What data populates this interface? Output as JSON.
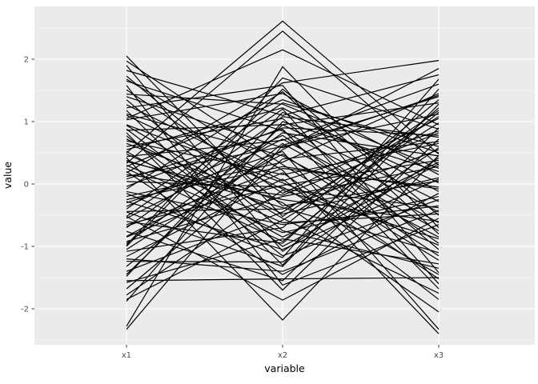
{
  "chart_data": {
    "type": "line",
    "variant": "parallel-coordinates",
    "title": "",
    "xlabel": "variable",
    "ylabel": "value",
    "categories": [
      "x1",
      "x2",
      "x3"
    ],
    "yticks": [
      2,
      1,
      0,
      -1,
      -2
    ],
    "yticks_minor": [
      2.5,
      1.5,
      0.5,
      -0.5,
      -1.5,
      -2.5
    ],
    "ylim": [
      -2.56,
      2.85
    ],
    "grid": "major and minor horizontal white lines, vertical white line at each category",
    "legend": "none",
    "rows": [
      [
        0.5,
        2.61,
        0.48
      ],
      [
        0.33,
        2.45,
        0.3
      ],
      [
        1.05,
        2.15,
        0.95
      ],
      [
        2.05,
        -0.52,
        1.18
      ],
      [
        1.97,
        0.31,
        -1.22
      ],
      [
        1.9,
        -1.08,
        0.58
      ],
      [
        -2.33,
        0.62,
        1.4
      ],
      [
        -2.28,
        1.88,
        -0.7
      ],
      [
        0.42,
        -2.18,
        0.46
      ],
      [
        -0.52,
        -1.86,
        -0.55
      ],
      [
        0.82,
        -1.7,
        0.72
      ],
      [
        -1.55,
        -1.52,
        -1.5
      ],
      [
        1.68,
        0.22,
        -2.4
      ],
      [
        -0.3,
        0.52,
        -2.33
      ],
      [
        0.18,
        1.62,
        1.98
      ],
      [
        1.82,
        1.1,
        1.75
      ],
      [
        1.73,
        -0.35,
        0.05
      ],
      [
        1.65,
        0.85,
        -0.45
      ],
      [
        1.51,
        -0.15,
        1.05
      ],
      [
        1.44,
        1.28,
        0.25
      ],
      [
        1.35,
        -0.75,
        -1.35
      ],
      [
        1.27,
        0.05,
        0.85
      ],
      [
        1.18,
        -1.3,
        1.52
      ],
      [
        1.12,
        0.45,
        -0.85
      ],
      [
        1.03,
        1.45,
        0.15
      ],
      [
        0.94,
        -0.55,
        -1.75
      ],
      [
        0.86,
        0.95,
        1.3
      ],
      [
        0.77,
        -1.15,
        -0.25
      ],
      [
        0.69,
        0.15,
        0.65
      ],
      [
        0.6,
        1.05,
        -1.05
      ],
      [
        0.52,
        -0.85,
        0.35
      ],
      [
        0.44,
        0.7,
        1.6
      ],
      [
        0.36,
        -0.25,
        -0.6
      ],
      [
        0.28,
        1.35,
        0.5
      ],
      [
        0.2,
        -1.45,
        -0.15
      ],
      [
        0.12,
        0.6,
        1.12
      ],
      [
        0.04,
        -0.05,
        -1.45
      ],
      [
        -0.04,
        0.9,
        0.78
      ],
      [
        -0.12,
        -0.65,
        -0.35
      ],
      [
        -0.2,
        0.35,
        1.45
      ],
      [
        -0.28,
        -1.05,
        0.08
      ],
      [
        -0.36,
        0.78,
        -0.95
      ],
      [
        -0.44,
        -0.4,
        0.55
      ],
      [
        -0.52,
        1.2,
        -1.6
      ],
      [
        -0.6,
        -0.95,
        1.22
      ],
      [
        -0.68,
        0.25,
        -0.05
      ],
      [
        -0.76,
        -1.55,
        0.9
      ],
      [
        -0.84,
        0.48,
        -1.15
      ],
      [
        -0.92,
        -0.2,
        0.28
      ],
      [
        -1.0,
        1.52,
        -0.5
      ],
      [
        -1.08,
        -0.7,
        1.35
      ],
      [
        -1.16,
        0.08,
        -1.85
      ],
      [
        -1.24,
        -1.25,
        0.42
      ],
      [
        -1.32,
        0.65,
        -0.75
      ],
      [
        -1.4,
        -0.45,
        1.08
      ],
      [
        -1.48,
        1.15,
        0.02
      ],
      [
        -1.58,
        -0.88,
        -1.28
      ],
      [
        -1.68,
        0.4,
        0.68
      ],
      [
        -1.78,
        -0.1,
        -0.88
      ],
      [
        -1.88,
        1.0,
        0.2
      ],
      [
        0.95,
        0.02,
        -0.98
      ],
      [
        -0.15,
        -1.18,
        1.68
      ],
      [
        1.22,
        1.58,
        -1.42
      ],
      [
        -0.98,
        1.7,
        0.88
      ],
      [
        0.65,
        -0.3,
        -2.05
      ],
      [
        -1.05,
        0.55,
        1.85
      ],
      [
        0.3,
        -0.78,
        -0.2
      ],
      [
        -0.4,
        1.3,
        0.6
      ],
      [
        1.58,
        -1.62,
        -0.65
      ],
      [
        -1.85,
        -0.58,
        0.98
      ],
      [
        0.08,
        0.88,
        -1.68
      ],
      [
        -0.65,
        -0.02,
        0.38
      ],
      [
        1.4,
        0.58,
        1.42
      ],
      [
        -1.2,
        -1.4,
        -0.42
      ],
      [
        0.55,
        1.22,
        -0.12
      ],
      [
        -0.85,
        0.18,
        -1.52
      ],
      [
        0.25,
        -0.92,
        1.15
      ],
      [
        -0.08,
        1.48,
        -0.8
      ],
      [
        0.72,
        -0.48,
        0.1
      ],
      [
        -1.45,
        0.95,
        -0.28
      ],
      [
        0.15,
        -0.18,
        0.82
      ],
      [
        -0.55,
        0.72,
        -0.62
      ],
      [
        0.88,
        -1.0,
        0.32
      ],
      [
        -0.25,
        0.28,
        -0.08
      ],
      [
        0.48,
        -0.62,
        -0.48
      ],
      [
        -0.7,
        1.08,
        0.75
      ],
      [
        0.38,
        -0.38,
        -1.1
      ],
      [
        -0.95,
        0.82,
        0.45
      ],
      [
        1.1,
        -0.08,
        -0.38
      ],
      [
        -0.45,
        -1.32,
        1.28
      ]
    ]
  },
  "style": {
    "figure_bg": "#FFFFFF",
    "panel_bg": "#EBEBEB",
    "grid_color": "#FFFFFF",
    "line_color": "#000000",
    "tick_label_color": "#4D4D4D",
    "axis_title_color": "#000000",
    "tick_mark_color": "#333333"
  }
}
